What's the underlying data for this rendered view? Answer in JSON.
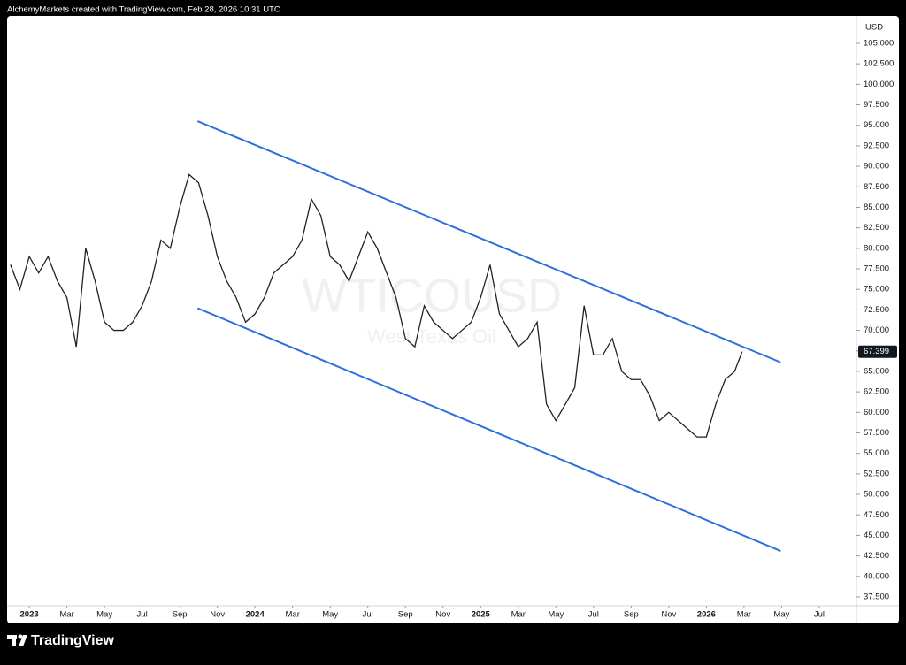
{
  "header": "AlchemyMarkets created with TradingView.com, Feb 28, 2026 10:31 UTC",
  "footer": "TradingView",
  "chart_data": {
    "type": "line",
    "watermark": "WTICOUSD",
    "watermark_subtitle": "West Texas Oil",
    "y_unit": "USD",
    "color": "#222222",
    "x": [
      -1,
      -0.5,
      0,
      0.5,
      1,
      1.5,
      2,
      2.5,
      3,
      3.5,
      4,
      4.5,
      5,
      5.5,
      6,
      6.5,
      7,
      7.5,
      8,
      8.5,
      9,
      9.5,
      10,
      10.5,
      11,
      11.5,
      12,
      12.5,
      13,
      13.5,
      14,
      14.5,
      15,
      15.5,
      16,
      16.5,
      17,
      17.5,
      18,
      18.5,
      19,
      19.5,
      20,
      20.5,
      21,
      21.5,
      22,
      22.5,
      23,
      23.5,
      24,
      24.5,
      25,
      25.5,
      26,
      26.5,
      27,
      27.5,
      28,
      28.5,
      29,
      29.5,
      30,
      30.5,
      31,
      31.5,
      32,
      32.5,
      33,
      33.5,
      34,
      34.5,
      35,
      35.5,
      36,
      36.5,
      37,
      37.5,
      37.9
    ],
    "values": [
      78,
      75,
      79,
      77,
      79,
      76,
      74,
      68,
      80,
      76,
      71,
      70,
      70,
      71,
      73,
      76,
      81,
      80,
      85,
      89,
      88,
      84,
      79,
      76,
      74,
      71,
      72,
      74,
      77,
      78,
      79,
      81,
      86,
      84,
      79,
      78,
      76,
      79,
      82,
      80,
      77,
      74,
      69,
      68,
      73,
      71,
      70,
      69,
      70,
      71,
      74,
      78,
      72,
      70,
      68,
      69,
      71,
      61,
      59,
      61,
      63,
      73,
      67,
      67,
      69,
      65,
      64,
      64,
      62,
      59,
      60,
      59,
      58,
      57,
      57,
      61,
      64,
      65,
      67.399
    ],
    "last_price": {
      "value": 67.399,
      "label": "67.399"
    },
    "trend_lines": [
      {
        "color": "#2f6fde",
        "x": [
          8.95,
          39.95
        ],
        "values": [
          95.5,
          66.1
        ]
      },
      {
        "color": "#2f6fde",
        "x": [
          8.95,
          39.95
        ],
        "values": [
          72.7,
          43.1
        ]
      }
    ],
    "xlim": [
      -1.18,
      43.98
    ],
    "xticks": [
      {
        "value": 0,
        "label": "2023"
      },
      {
        "value": 2,
        "label": "Mar"
      },
      {
        "value": 4,
        "label": "May"
      },
      {
        "value": 6,
        "label": "Jul"
      },
      {
        "value": 8,
        "label": "Sep"
      },
      {
        "value": 10,
        "label": "Nov"
      },
      {
        "value": 12,
        "label": "2024"
      },
      {
        "value": 14,
        "label": "Mar"
      },
      {
        "value": 16,
        "label": "May"
      },
      {
        "value": 18,
        "label": "Jul"
      },
      {
        "value": 20,
        "label": "Sep"
      },
      {
        "value": 22,
        "label": "Nov"
      },
      {
        "value": 24,
        "label": "2025"
      },
      {
        "value": 26,
        "label": "Mar"
      },
      {
        "value": 28,
        "label": "May"
      },
      {
        "value": 30,
        "label": "Jul"
      },
      {
        "value": 32,
        "label": "Sep"
      },
      {
        "value": 34,
        "label": "Nov"
      },
      {
        "value": 36,
        "label": "2026"
      },
      {
        "value": 38,
        "label": "Mar"
      },
      {
        "value": 40,
        "label": "May"
      },
      {
        "value": 42,
        "label": "Jul"
      }
    ],
    "ylim": [
      36.42,
      108.34
    ],
    "yticks": [
      {
        "value": 37.5,
        "label": "37.500"
      },
      {
        "value": 40,
        "label": "40.000"
      },
      {
        "value": 42.5,
        "label": "42.500"
      },
      {
        "value": 45,
        "label": "45.000"
      },
      {
        "value": 47.5,
        "label": "47.500"
      },
      {
        "value": 50,
        "label": "50.000"
      },
      {
        "value": 52.5,
        "label": "52.500"
      },
      {
        "value": 55,
        "label": "55.000"
      },
      {
        "value": 57.5,
        "label": "57.500"
      },
      {
        "value": 60,
        "label": "60.000"
      },
      {
        "value": 62.5,
        "label": "62.500"
      },
      {
        "value": 65,
        "label": "65.000"
      },
      {
        "value": 67.5,
        "label": "67.500"
      },
      {
        "value": 70,
        "label": "70.000"
      },
      {
        "value": 72.5,
        "label": "72.500"
      },
      {
        "value": 75,
        "label": "75.000"
      },
      {
        "value": 77.5,
        "label": "77.500"
      },
      {
        "value": 80,
        "label": "80.000"
      },
      {
        "value": 82.5,
        "label": "82.500"
      },
      {
        "value": 85,
        "label": "85.000"
      },
      {
        "value": 87.5,
        "label": "87.500"
      },
      {
        "value": 90,
        "label": "90.000"
      },
      {
        "value": 92.5,
        "label": "92.500"
      },
      {
        "value": 95,
        "label": "95.000"
      },
      {
        "value": 97.5,
        "label": "97.500"
      },
      {
        "value": 100,
        "label": "100.000"
      },
      {
        "value": 102.5,
        "label": "102.500"
      },
      {
        "value": 105,
        "label": "105.000"
      }
    ]
  }
}
